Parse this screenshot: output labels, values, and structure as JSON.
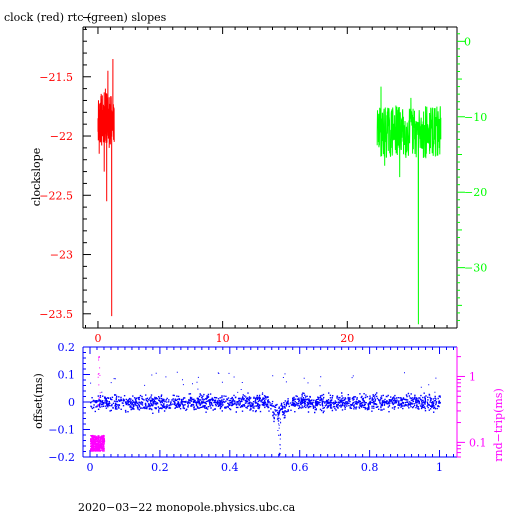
{
  "chart_data": [
    {
      "type": "line",
      "title": "clock (red) rtc (green) slopes",
      "xlabel": "",
      "ylabel": "clockslope",
      "xlim": [
        -1.2,
        28.8
      ],
      "xticks": [
        "0",
        "10",
        "20"
      ],
      "ylim": [
        -23.62,
        -21.08
      ],
      "yticks": [
        "−21.5",
        "−22",
        "−22.5",
        "−23",
        "−23.5"
      ],
      "y2lim": [
        -38.0,
        1.9
      ],
      "y2ticks": [
        "0",
        "−10",
        "−20",
        "−30"
      ],
      "grid": false,
      "series": [
        {
          "color": "#ff0000",
          "axis": "left",
          "x": [
            0.0,
            0.1,
            0.2,
            0.3,
            0.4,
            0.5,
            0.6,
            0.7,
            0.8,
            0.9,
            1.0,
            1.1,
            1.2,
            1.3
          ],
          "y": [
            -21.85,
            -22.15,
            -21.72,
            -22.08,
            -21.78,
            -22.3,
            -21.6,
            -22.55,
            -21.45,
            -22.1,
            -21.85,
            -23.52,
            -21.35,
            -22.05
          ]
        },
        {
          "color": "#00ff00",
          "axis": "right",
          "x": [
            22.4,
            22.7,
            23.0,
            23.3,
            23.6,
            23.9,
            24.2,
            24.5,
            24.8,
            25.1,
            25.4,
            25.7,
            26.0,
            26.3,
            26.6,
            26.9,
            27.2,
            27.5
          ],
          "y": [
            -12.0,
            -6.0,
            -16.5,
            -9.0,
            -15.0,
            -8.5,
            -18.0,
            -10.0,
            -14.5,
            -7.5,
            -13.0,
            -37.5,
            -11.0,
            -15.5,
            -9.5,
            -14.0,
            -11.5,
            -13.0
          ]
        }
      ]
    },
    {
      "type": "scatter",
      "xlabel": "",
      "ylabel": "offset(ms)",
      "y2label": "rnd−trip(ms)",
      "xlim": [
        -0.02,
        1.05
      ],
      "xticks": [
        "0",
        "0.2",
        "0.4",
        "0.6",
        "0.8",
        "1"
      ],
      "ylim": [
        -0.2,
        0.2
      ],
      "yticks": [
        "0.2",
        "0.1",
        "0",
        "−0.1",
        "−0.2"
      ],
      "y2ticks": [
        "1",
        "0.1"
      ],
      "y2scale": "log",
      "grid": false,
      "series": [
        {
          "color": "#0000ff",
          "axis": "left",
          "x": [
            0.0,
            0.1,
            0.2,
            0.3,
            0.4,
            0.5,
            0.53,
            0.54,
            0.55,
            0.6,
            0.7,
            0.8,
            0.9,
            1.0
          ],
          "y": [
            0.0,
            0.0,
            0.0,
            0.0,
            0.0,
            0.0,
            -0.03,
            -0.19,
            -0.02,
            0.0,
            0.0,
            0.0,
            0.0,
            0.0
          ]
        },
        {
          "color": "#ff00ff",
          "axis": "right",
          "x": [
            0.0,
            0.01,
            0.02,
            0.025,
            0.03
          ],
          "y": [
            0.08,
            0.1,
            0.12,
            2.0,
            0.09
          ]
        }
      ]
    }
  ],
  "footer": "2020−03−22  monopole.physics.ubc.ca"
}
